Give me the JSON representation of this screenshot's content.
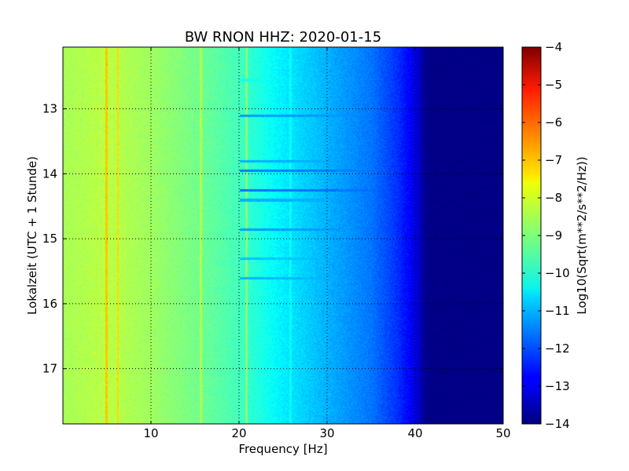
{
  "chart_data": {
    "type": "heatmap",
    "title": "BW RNON HHZ: 2020-01-15",
    "xlabel": "Frequency [Hz]",
    "ylabel": "Lokalzeit (UTC + 1 Stunde)",
    "xlim": [
      0,
      50
    ],
    "ylim": [
      12.05,
      17.85
    ],
    "y_inverted": true,
    "x_ticks": [
      10,
      20,
      30,
      40,
      50
    ],
    "y_ticks": [
      13,
      14,
      15,
      16,
      17
    ],
    "grid": true,
    "colormap": "jet",
    "colorbar": {
      "label": "Log10(Sqrt(m**2/s**2/Hz))",
      "min": -14,
      "max": -4,
      "ticks": [
        -4,
        -5,
        -6,
        -7,
        -8,
        -9,
        -10,
        -11,
        -12,
        -13,
        -14
      ]
    },
    "background_profile": {
      "frequency_hz": [
        0,
        5,
        10,
        15,
        20,
        25,
        30,
        35,
        38,
        40,
        41,
        42,
        50
      ],
      "level": [
        -8.6,
        -8.4,
        -8.7,
        -9.1,
        -9.6,
        -10.4,
        -11.0,
        -11.6,
        -12.3,
        -13.0,
        -13.8,
        -14.0,
        -14.0
      ]
    },
    "vertical_lines": [
      {
        "frequency_hz": 4.9,
        "level": -7.2
      },
      {
        "frequency_hz": 6.2,
        "level": -7.4
      },
      {
        "frequency_hz": 10.0,
        "level": -8.8
      },
      {
        "frequency_hz": 15.6,
        "level": -8.5
      },
      {
        "frequency_hz": 20.8,
        "level": -8.9
      },
      {
        "frequency_hz": 25.8,
        "level": -10.2
      }
    ],
    "horizontal_bands": [
      {
        "time": 12.55,
        "level": -10.0
      },
      {
        "time": 13.1,
        "level": -11.2
      },
      {
        "time": 13.8,
        "level": -11.0
      },
      {
        "time": 13.95,
        "level": -11.5
      },
      {
        "time": 14.25,
        "level": -11.6
      },
      {
        "time": 14.4,
        "level": -11.0
      },
      {
        "time": 14.85,
        "level": -11.2
      },
      {
        "time": 15.3,
        "level": -10.8
      },
      {
        "time": 15.6,
        "level": -10.9
      }
    ]
  }
}
